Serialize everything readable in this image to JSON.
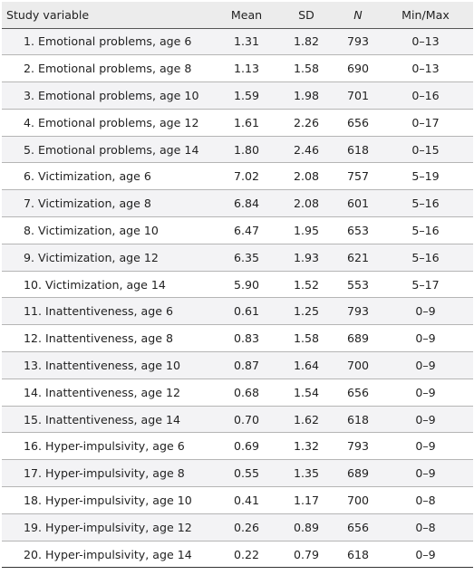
{
  "table": {
    "headers": {
      "variable": "Study variable",
      "mean": "Mean",
      "sd": "SD",
      "n": "N",
      "minmax": "Min/Max"
    },
    "rows": [
      {
        "variable": "1. Emotional problems, age 6",
        "mean": "1.31",
        "sd": "1.82",
        "n": "793",
        "minmax": "0–13"
      },
      {
        "variable": "2. Emotional problems, age 8",
        "mean": "1.13",
        "sd": "1.58",
        "n": "690",
        "minmax": "0–13"
      },
      {
        "variable": "3. Emotional problems, age 10",
        "mean": "1.59",
        "sd": "1.98",
        "n": "701",
        "minmax": "0–16"
      },
      {
        "variable": "4. Emotional problems, age 12",
        "mean": "1.61",
        "sd": "2.26",
        "n": "656",
        "minmax": "0–17"
      },
      {
        "variable": "5. Emotional problems, age 14",
        "mean": "1.80",
        "sd": "2.46",
        "n": "618",
        "minmax": "0–15"
      },
      {
        "variable": "6. Victimization, age 6",
        "mean": "7.02",
        "sd": "2.08",
        "n": "757",
        "minmax": "5–19"
      },
      {
        "variable": "7. Victimization, age 8",
        "mean": "6.84",
        "sd": "2.08",
        "n": "601",
        "minmax": "5–16"
      },
      {
        "variable": "8. Victimization, age 10",
        "mean": "6.47",
        "sd": "1.95",
        "n": "653",
        "minmax": "5–16"
      },
      {
        "variable": "9. Victimization, age 12",
        "mean": "6.35",
        "sd": "1.93",
        "n": "621",
        "minmax": "5–16"
      },
      {
        "variable": "10. Victimization, age 14",
        "mean": "5.90",
        "sd": "1.52",
        "n": "553",
        "minmax": "5–17"
      },
      {
        "variable": "11. Inattentiveness, age 6",
        "mean": "0.61",
        "sd": "1.25",
        "n": "793",
        "minmax": "0–9"
      },
      {
        "variable": "12. Inattentiveness, age 8",
        "mean": "0.83",
        "sd": "1.58",
        "n": "689",
        "minmax": "0–9"
      },
      {
        "variable": "13. Inattentiveness, age 10",
        "mean": "0.87",
        "sd": "1.64",
        "n": "700",
        "minmax": "0–9"
      },
      {
        "variable": "14. Inattentiveness, age 12",
        "mean": "0.68",
        "sd": "1.54",
        "n": "656",
        "minmax": "0–9"
      },
      {
        "variable": "15. Inattentiveness, age 14",
        "mean": "0.70",
        "sd": "1.62",
        "n": "618",
        "minmax": "0–9"
      },
      {
        "variable": "16. Hyper-impulsivity, age 6",
        "mean": "0.69",
        "sd": "1.32",
        "n": "793",
        "minmax": "0–9"
      },
      {
        "variable": "17. Hyper-impulsivity, age 8",
        "mean": "0.55",
        "sd": "1.35",
        "n": "689",
        "minmax": "0–9"
      },
      {
        "variable": "18. Hyper-impulsivity, age 10",
        "mean": "0.41",
        "sd": "1.17",
        "n": "700",
        "minmax": "0–8"
      },
      {
        "variable": "19. Hyper-impulsivity, age 12",
        "mean": "0.26",
        "sd": "0.89",
        "n": "656",
        "minmax": "0–8"
      },
      {
        "variable": "20. Hyper-impulsivity, age 14",
        "mean": "0.22",
        "sd": "0.79",
        "n": "618",
        "minmax": "0–9"
      }
    ]
  }
}
